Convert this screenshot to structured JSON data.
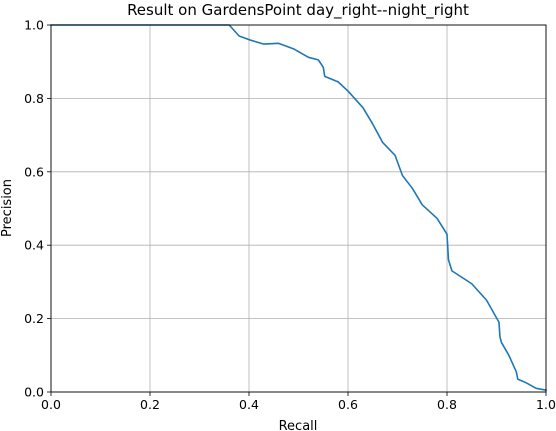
{
  "chart_data": {
    "type": "line",
    "title": "Result on GardensPoint day_right--night_right",
    "xlabel": "Recall",
    "ylabel": "Precision",
    "xlim": [
      0,
      1
    ],
    "ylim": [
      0,
      1
    ],
    "xticks": [
      "0.0",
      "0.2",
      "0.4",
      "0.6",
      "0.8",
      "1.0"
    ],
    "yticks": [
      "0.0",
      "0.2",
      "0.4",
      "0.6",
      "0.8",
      "1.0"
    ],
    "grid": true,
    "line_color": "#1f77b4",
    "series": [
      {
        "x": [
          0.0,
          0.1,
          0.2,
          0.3,
          0.36,
          0.38,
          0.4,
          0.43,
          0.46,
          0.49,
          0.52,
          0.54,
          0.55,
          0.553,
          0.58,
          0.6,
          0.63,
          0.65,
          0.67,
          0.695,
          0.71,
          0.73,
          0.75,
          0.78,
          0.8,
          0.803,
          0.81,
          0.85,
          0.88,
          0.905,
          0.907,
          0.91,
          0.925,
          0.94,
          0.943,
          0.96,
          0.98,
          1.0
        ],
        "y": [
          1.0,
          1.0,
          1.0,
          1.0,
          1.0,
          0.97,
          0.96,
          0.948,
          0.95,
          0.935,
          0.912,
          0.905,
          0.885,
          0.86,
          0.845,
          0.82,
          0.775,
          0.73,
          0.68,
          0.645,
          0.59,
          0.555,
          0.51,
          0.473,
          0.43,
          0.36,
          0.33,
          0.295,
          0.25,
          0.19,
          0.15,
          0.135,
          0.1,
          0.055,
          0.035,
          0.025,
          0.01,
          0.005
        ]
      }
    ]
  }
}
